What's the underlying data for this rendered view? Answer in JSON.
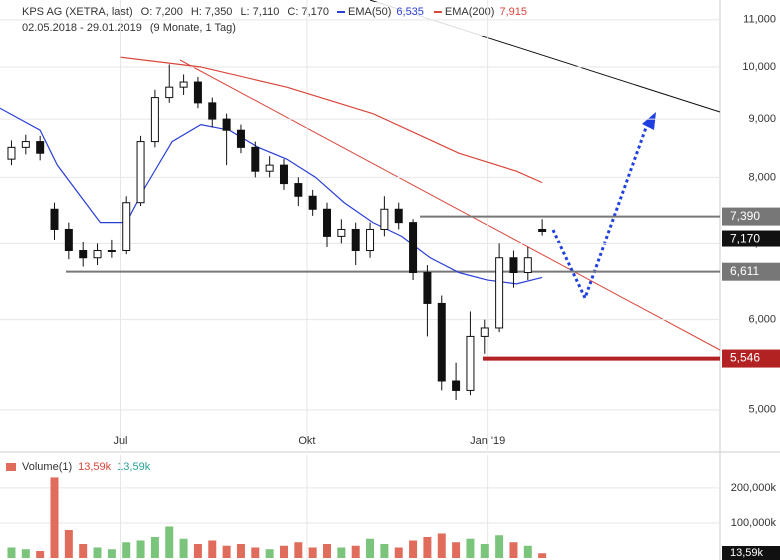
{
  "chart_data": {
    "type": "candlestick",
    "title": "KPS AG (XETRA, last)",
    "ohlc_labels": [
      "O: 7,200",
      "H: 7,350",
      "L: 7,110",
      "C: 7,170"
    ],
    "date_range": "02.05.2018 - 29.01.2019",
    "period": "(9 Monate, 1 Tag)",
    "log_scale": true,
    "grid": true,
    "xlim": [
      0,
      251
    ],
    "xticks": [
      {
        "value": 42,
        "label": "Jul"
      },
      {
        "value": 107,
        "label": "Okt"
      },
      {
        "value": 170,
        "label": "Jan '19"
      }
    ],
    "ylim": [
      4.61,
      11.45
    ],
    "yticks": [
      {
        "value": 5,
        "label": "5,000"
      },
      {
        "value": 6,
        "label": "6,000"
      },
      {
        "value": 7,
        "label": "7,000"
      },
      {
        "value": 8,
        "label": "8,000"
      },
      {
        "value": 9,
        "label": "9,000"
      },
      {
        "value": 10,
        "label": "10,000"
      },
      {
        "value": 11,
        "label": "11,000"
      }
    ],
    "candles": {
      "x": [
        4,
        9,
        14,
        19,
        24,
        29,
        34,
        39,
        44,
        49,
        54,
        59,
        64,
        69,
        74,
        79,
        84,
        89,
        94,
        99,
        104,
        109,
        114,
        119,
        124,
        129,
        134,
        139,
        144,
        149,
        154,
        159,
        164,
        169,
        174,
        179,
        184,
        189
      ],
      "open": [
        8.3,
        8.5,
        8.6,
        7.5,
        7.2,
        6.9,
        6.8,
        6.9,
        6.9,
        7.6,
        8.6,
        9.4,
        9.6,
        9.7,
        9.3,
        9.0,
        8.8,
        8.5,
        8.1,
        8.2,
        7.9,
        7.7,
        7.5,
        7.1,
        7.2,
        6.9,
        7.2,
        7.5,
        7.3,
        6.6,
        6.2,
        5.3,
        5.2,
        5.8,
        5.9,
        6.8,
        6.6,
        7.2
      ],
      "high": [
        8.62,
        8.72,
        8.7,
        7.6,
        7.3,
        7.02,
        7.0,
        7.05,
        7.7,
        8.7,
        9.55,
        10.05,
        9.85,
        9.8,
        9.4,
        9.1,
        8.9,
        8.6,
        8.35,
        8.3,
        8.0,
        7.8,
        7.6,
        7.35,
        7.3,
        7.3,
        7.7,
        7.6,
        7.35,
        6.7,
        6.3,
        5.5,
        6.1,
        6.0,
        7.0,
        6.9,
        6.95,
        7.35
      ],
      "low": [
        8.2,
        8.38,
        8.28,
        7.05,
        6.78,
        6.68,
        6.7,
        6.8,
        6.85,
        7.55,
        8.5,
        9.3,
        9.45,
        9.2,
        8.85,
        8.2,
        8.4,
        8.0,
        8.0,
        7.8,
        7.55,
        7.4,
        6.95,
        7.0,
        6.7,
        6.8,
        7.1,
        7.2,
        6.5,
        5.8,
        5.2,
        5.1,
        5.15,
        5.6,
        5.85,
        6.4,
        6.5,
        7.11
      ],
      "close": [
        8.5,
        8.6,
        8.4,
        7.2,
        6.9,
        6.8,
        6.9,
        6.9,
        7.6,
        8.6,
        9.4,
        9.6,
        9.7,
        9.3,
        9.0,
        8.8,
        8.5,
        8.1,
        8.2,
        7.9,
        7.7,
        7.5,
        7.1,
        7.2,
        6.9,
        7.2,
        7.5,
        7.3,
        6.6,
        6.2,
        5.3,
        5.2,
        5.8,
        5.9,
        6.8,
        6.6,
        6.8,
        7.17
      ]
    },
    "series": [
      {
        "name": "EMA(50)",
        "color": "#2a3fd6",
        "last_label": "6,535",
        "x": [
          0,
          14,
          20,
          35,
          44,
          50,
          60,
          70,
          80,
          90,
          100,
          110,
          120,
          130,
          140,
          150,
          160,
          170,
          180,
          189
        ],
        "values": [
          9.2,
          8.8,
          8.2,
          7.3,
          7.3,
          7.8,
          8.6,
          8.9,
          8.8,
          8.5,
          8.3,
          8.0,
          7.6,
          7.3,
          7.1,
          6.8,
          6.6,
          6.5,
          6.45,
          6.535
        ]
      },
      {
        "name": "EMA(200)",
        "color": "#d9463a",
        "last_label": "7,915",
        "x": [
          42,
          70,
          100,
          130,
          160,
          180,
          189
        ],
        "values": [
          10.2,
          10.0,
          9.6,
          9.1,
          8.4,
          8.1,
          7.915
        ]
      }
    ],
    "levels": [
      {
        "value": 7.39,
        "label": "7,390",
        "color": "#777777"
      },
      {
        "value": 6.611,
        "label": "6,611",
        "color": "#777777"
      },
      {
        "value": 5.546,
        "label": "5,546",
        "color": "#b22222"
      }
    ],
    "last_price": {
      "value": 7.17,
      "label": "7,170"
    },
    "volume": {
      "name": "Volume(1)",
      "labels": [
        "13,59k",
        "13,59k"
      ],
      "label_colors": [
        "#d9463a",
        "#2aa198"
      ],
      "last_label": "13,59k",
      "ylim": [
        0,
        294
      ],
      "yticks": [
        {
          "value": 100,
          "label": "100,000k"
        },
        {
          "value": 200,
          "label": "200,000k"
        }
      ],
      "values": [
        30,
        25,
        20,
        230,
        80,
        40,
        30,
        25,
        45,
        50,
        60,
        90,
        55,
        40,
        50,
        35,
        40,
        30,
        25,
        35,
        45,
        30,
        40,
        30,
        35,
        55,
        40,
        30,
        50,
        60,
        70,
        45,
        55,
        40,
        65,
        45,
        35,
        13.59
      ]
    }
  }
}
